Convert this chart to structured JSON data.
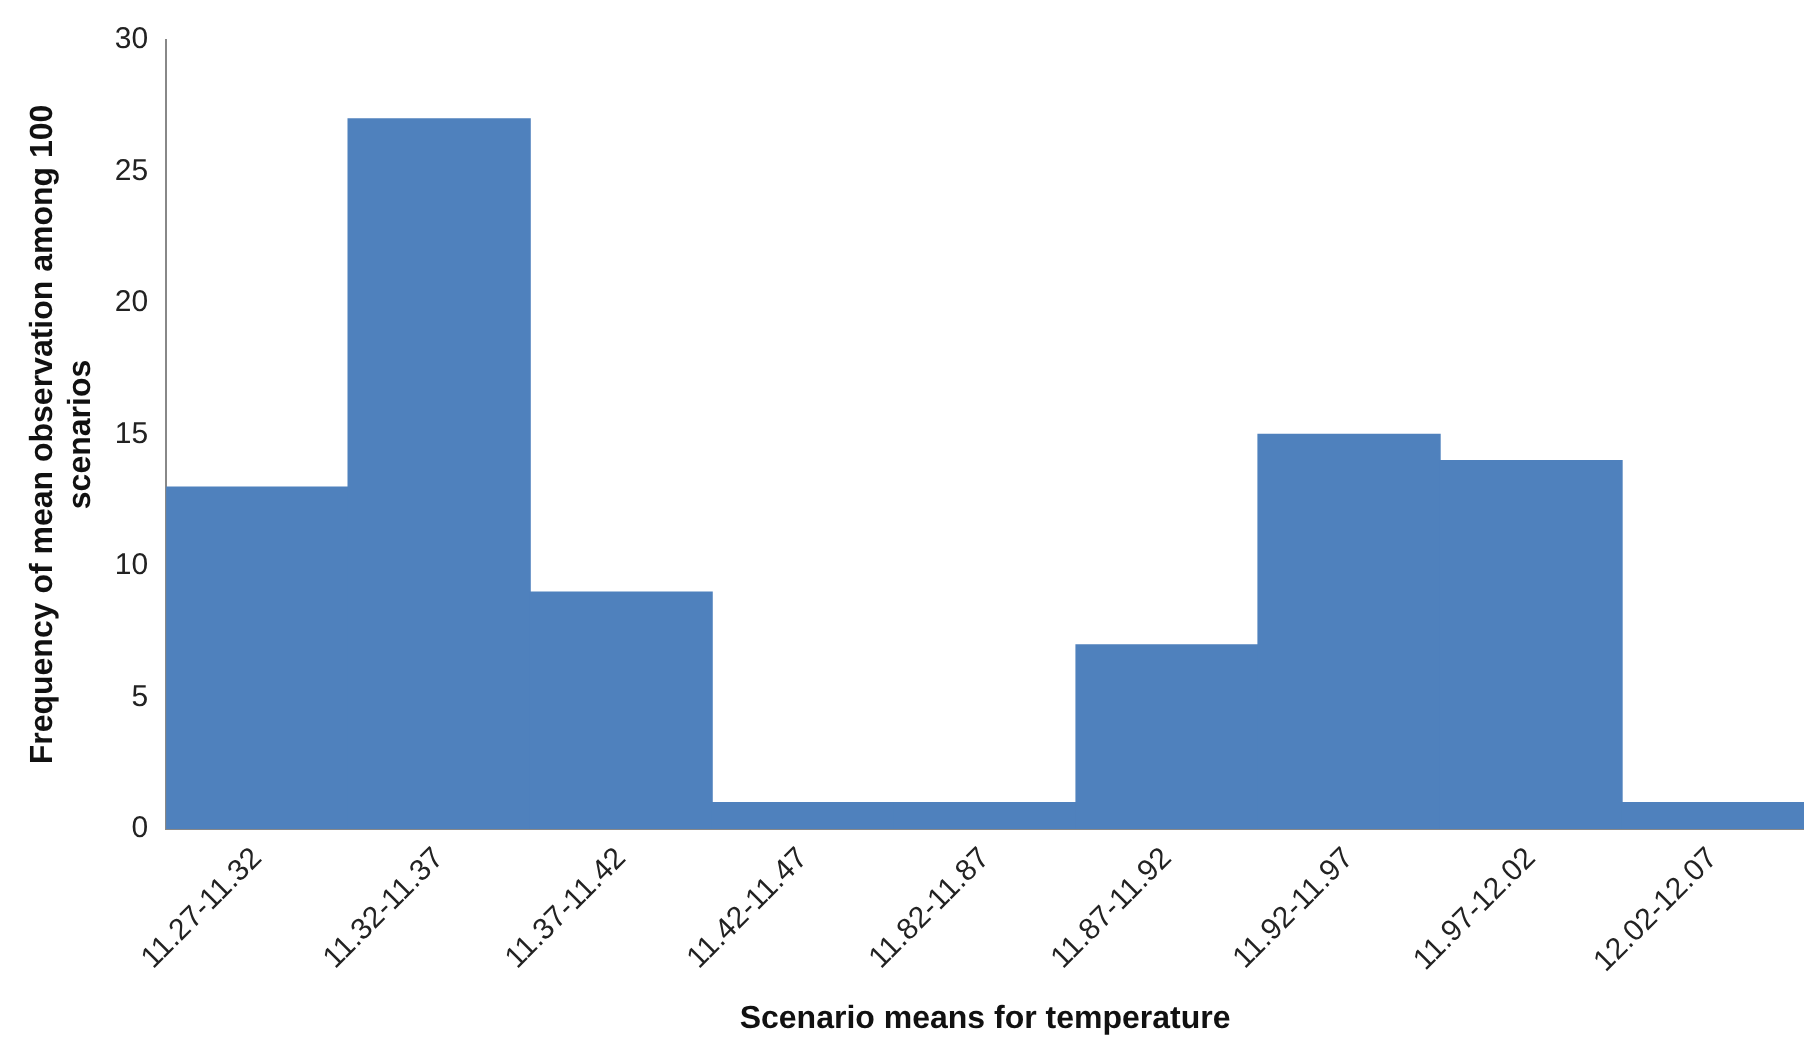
{
  "chart_data": {
    "type": "bar",
    "xlabel": "Scenario means for temperature",
    "ylabel": "Frequency of mean observation among 100 scenarios",
    "categories": [
      "11.27-11.32",
      "11.32-11.37",
      "11.37-11.42",
      "11.42-11.47",
      "11.82-11.87",
      "11.87-11.92",
      "11.92-11.97",
      "11.97-12.02",
      "12.02-12.07"
    ],
    "values": [
      13,
      27,
      9,
      1,
      1,
      7,
      15,
      14,
      1
    ],
    "color": "#4f81bd",
    "ylim": [
      0,
      30
    ],
    "yticks": [
      0,
      5,
      10,
      15,
      20,
      25,
      30
    ],
    "grid": false,
    "legend": false
  }
}
